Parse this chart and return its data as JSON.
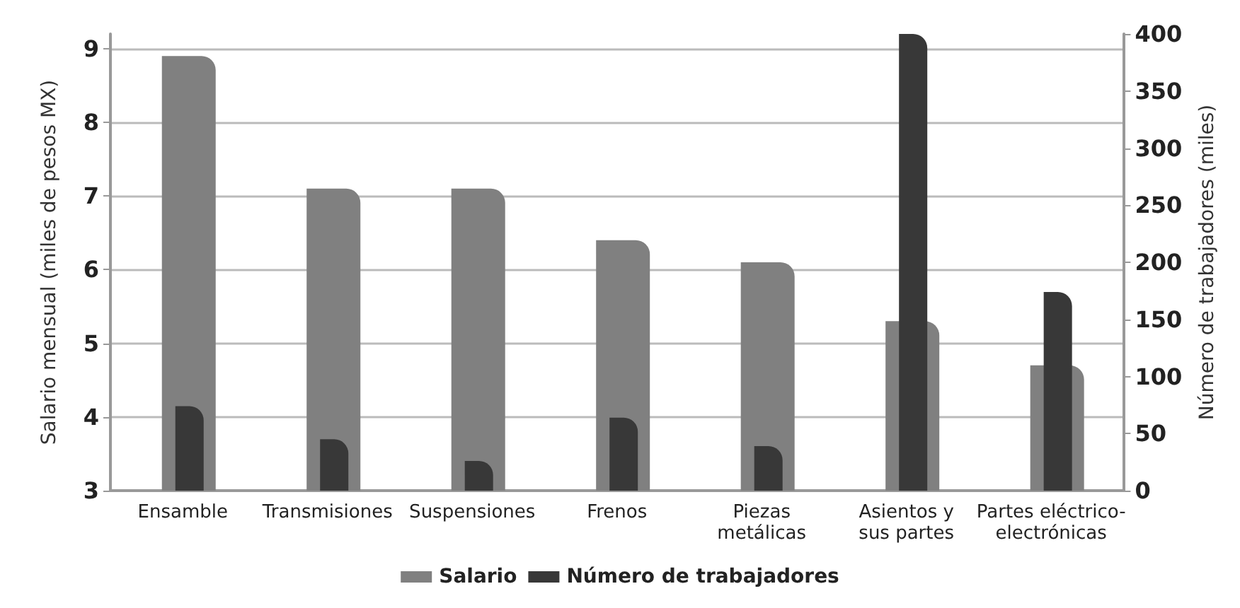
{
  "chart_data": {
    "type": "bar",
    "ylabel": "Salario mensual (miles de pesos MX)",
    "y2label": "Número de trabajadores (miles)",
    "categories": [
      "Ensamble",
      "Transmisiones",
      "Suspensiones",
      "Frenos",
      "Piezas\nmetálicas",
      "Asientos y\nsus partes",
      "Partes eléctrico-\nelectrónicas"
    ],
    "series": [
      {
        "name": "Salario",
        "color": "#808080",
        "values": [
          8.9,
          7.1,
          7.1,
          6.4,
          6.1,
          5.3,
          4.7
        ]
      },
      {
        "name": "Número de trabajadores",
        "color": "#383838",
        "axis": "y2",
        "values": [
          74,
          45,
          26,
          64,
          39,
          400,
          174
        ]
      }
    ],
    "ylim": [
      3,
      9.2
    ],
    "yticks": [
      3,
      4,
      5,
      6,
      7,
      8,
      9
    ],
    "y2lim": [
      0,
      400
    ],
    "y2ticks": [
      0,
      50,
      100,
      150,
      200,
      250,
      300,
      350,
      400
    ],
    "grid": "y",
    "legend": "bottom"
  }
}
